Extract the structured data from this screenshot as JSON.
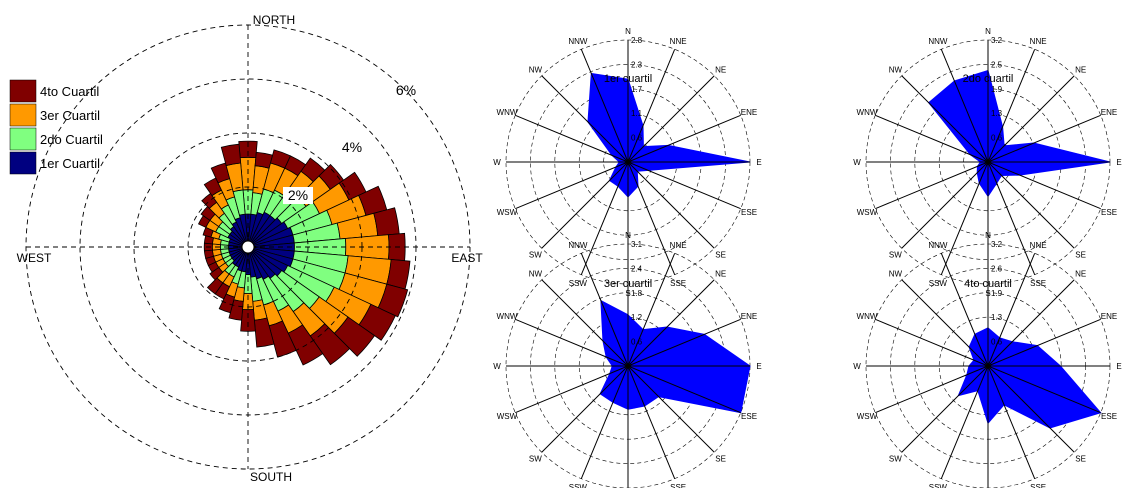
{
  "chart_data": [
    {
      "type": "wind-rose",
      "title": "",
      "directions": [
        "N",
        "NNE",
        "NE",
        "ENE",
        "E",
        "ESE",
        "SE",
        "SSE",
        "S",
        "SSW",
        "SW",
        "WSW",
        "W",
        "WNW",
        "NW",
        "NNW"
      ],
      "compass_labels": {
        "north": "NORTH",
        "east": "EAST",
        "south": "SOUTH",
        "west": "WEST"
      },
      "radial_unit": "%",
      "ring_labels": [
        "2%",
        "4%",
        "6%"
      ],
      "rings": [
        2,
        4,
        6,
        8
      ],
      "legend_placement": "top-left",
      "legend": [
        "4to Cuartil",
        "3er Cuartil",
        "2do Cuartil",
        "1er Cuartil"
      ],
      "sector_count": 36,
      "sector_angles_deg": [
        0,
        10,
        20,
        30,
        40,
        50,
        60,
        70,
        80,
        90,
        100,
        110,
        120,
        130,
        140,
        150,
        160,
        170,
        180,
        190,
        200,
        210,
        220,
        230,
        240,
        250,
        260,
        270,
        280,
        290,
        300,
        310,
        320,
        330,
        340,
        350
      ],
      "series": [
        {
          "name": "1er Cuartil",
          "color": "#000080",
          "values": [
            1.0,
            1.0,
            1.1,
            1.2,
            1.2,
            1.3,
            1.4,
            1.5,
            1.5,
            1.5,
            1.5,
            1.5,
            1.4,
            1.3,
            1.2,
            1.1,
            1.0,
            0.9,
            0.8,
            0.7,
            0.7,
            0.6,
            0.6,
            0.5,
            0.5,
            0.5,
            0.5,
            0.5,
            0.5,
            0.5,
            0.6,
            0.6,
            0.7,
            0.8,
            0.9,
            1.0
          ]
        },
        {
          "name": "2do Cuartil",
          "color": "#80ff80",
          "values": [
            0.9,
            0.8,
            0.9,
            0.9,
            1.0,
            1.1,
            1.3,
            1.5,
            1.7,
            1.9,
            2.0,
            2.0,
            1.9,
            1.7,
            1.5,
            1.3,
            1.0,
            0.9,
            0.7,
            0.6,
            0.5,
            0.4,
            0.4,
            0.3,
            0.3,
            0.3,
            0.3,
            0.3,
            0.3,
            0.4,
            0.5,
            0.5,
            0.6,
            0.7,
            0.8,
            0.9
          ]
        },
        {
          "name": "3er Cuartil",
          "color": "#ff9900",
          "values": [
            1.2,
            1.0,
            1.0,
            0.9,
            1.0,
            1.1,
            1.2,
            1.3,
            1.4,
            1.6,
            1.6,
            1.6,
            1.5,
            1.3,
            1.1,
            0.9,
            0.8,
            0.7,
            0.6,
            0.5,
            0.5,
            0.4,
            0.4,
            0.3,
            0.3,
            0.3,
            0.3,
            0.3,
            0.3,
            0.3,
            0.4,
            0.4,
            0.5,
            0.6,
            0.7,
            1.0
          ]
        },
        {
          "name": "4to Cuartil",
          "color": "#800000",
          "values": [
            0.6,
            0.5,
            0.5,
            0.5,
            0.6,
            0.6,
            0.7,
            0.8,
            0.8,
            0.6,
            0.7,
            0.8,
            1.0,
            1.2,
            1.3,
            1.3,
            1.2,
            1.0,
            0.8,
            0.7,
            0.6,
            0.5,
            0.5,
            0.4,
            0.3,
            0.3,
            0.3,
            0.3,
            0.3,
            0.3,
            0.3,
            0.4,
            0.4,
            0.5,
            0.6,
            0.7
          ]
        }
      ]
    },
    {
      "type": "radar",
      "title": "1er cuartil",
      "color": "#0000ff",
      "directions": [
        "N",
        "NNE",
        "NE",
        "ENE",
        "E",
        "ESE",
        "SE",
        "SSE",
        "S",
        "SSW",
        "SW",
        "WSW",
        "W",
        "WNW",
        "NW",
        "NNW"
      ],
      "tick_labels": [
        "2.8",
        "2.3",
        "1.7",
        "1.1",
        "0.6"
      ],
      "rmax": 2.8,
      "values": [
        1.9,
        0.9,
        0.5,
        1.0,
        2.8,
        0.5,
        0.3,
        0.6,
        0.8,
        0.6,
        0.6,
        0.3,
        0.2,
        0.4,
        1.3,
        2.2
      ]
    },
    {
      "type": "radar",
      "title": "2do cuartil",
      "color": "#0000ff",
      "directions": [
        "N",
        "NNE",
        "NE",
        "ENE",
        "E",
        "ESE",
        "SE",
        "SSE",
        "S",
        "SSW",
        "SW",
        "WSW",
        "W",
        "WNW",
        "NW",
        "NNW"
      ],
      "tick_labels": [
        "3.2",
        "2.5",
        "1.9",
        "1.3",
        "0.6"
      ],
      "rmax": 3.2,
      "values": [
        2.4,
        1.0,
        0.6,
        1.3,
        3.2,
        0.9,
        0.5,
        0.6,
        0.9,
        0.6,
        0.4,
        0.3,
        0.2,
        0.5,
        2.2,
        2.3
      ]
    },
    {
      "type": "radar",
      "title": "3er cuartil",
      "color": "#0000ff",
      "directions": [
        "N",
        "NNE",
        "NE",
        "ENE",
        "E",
        "ESE",
        "SE",
        "SSE",
        "S",
        "SSW",
        "SW",
        "WSW",
        "W",
        "WNW",
        "NW",
        "NNW"
      ],
      "tick_labels": [
        "3.1",
        "2.4",
        "1.8",
        "1.2",
        "0.6"
      ],
      "rmax": 3.1,
      "values": [
        1.3,
        1.0,
        1.4,
        2.1,
        3.1,
        3.1,
        1.1,
        1.1,
        1.1,
        1.0,
        1.0,
        0.5,
        0.4,
        0.6,
        0.9,
        1.8
      ]
    },
    {
      "type": "radar",
      "title": "4to cuartil",
      "color": "#0000ff",
      "directions": [
        "N",
        "NNE",
        "NE",
        "ENE",
        "E",
        "ESE",
        "SE",
        "SSE",
        "S",
        "SSW",
        "SW",
        "WSW",
        "W",
        "WNW",
        "NW",
        "NNW"
      ],
      "tick_labels": [
        "3.2",
        "2.6",
        "1.9",
        "1.3",
        "0.6"
      ],
      "rmax": 3.2,
      "values": [
        1.0,
        0.8,
        0.9,
        1.4,
        1.9,
        3.2,
        2.3,
        1.1,
        1.5,
        0.7,
        1.1,
        0.6,
        0.5,
        0.4,
        0.7,
        0.9
      ]
    }
  ]
}
